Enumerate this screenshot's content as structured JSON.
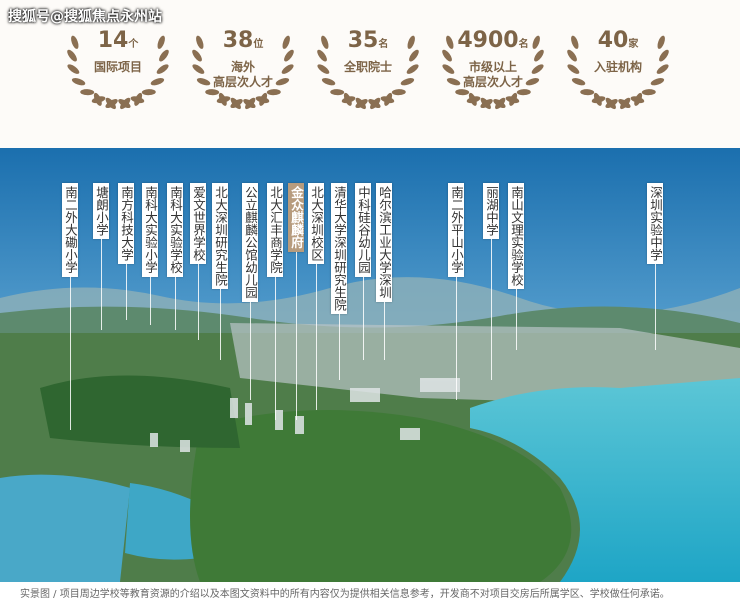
{
  "watermark": "搜狐号@搜狐焦点永州站",
  "stats": [
    {
      "number": "14",
      "unit": "个",
      "lines": [
        "国际项目"
      ]
    },
    {
      "number": "38",
      "unit": "位",
      "lines": [
        "海外",
        "高层次人才"
      ]
    },
    {
      "number": "35",
      "unit": "名",
      "lines": [
        "全职院士"
      ]
    },
    {
      "number": "4900",
      "unit": "名",
      "lines": [
        "市级以上",
        "高层次人才"
      ]
    },
    {
      "number": "40",
      "unit": "家",
      "lines": [
        "入驻机构"
      ]
    }
  ],
  "places": [
    "南二外大磡小学",
    "塘朗小学",
    "南方科技大学",
    "南科大实验小学",
    "南科大实验学校",
    "爱文世界学校",
    "北大深圳研究生院",
    "公立麒麟公馆幼儿园",
    "北大汇丰商学院",
    "金众麒麟府",
    "北大深圳校区",
    "清华大学深圳研究生院",
    "中科硅谷幼儿园",
    "哈尔滨工业大学深圳",
    "南二外平山小学",
    "丽湖中学",
    "南山文理实验学校",
    "深圳实验中学"
  ],
  "caption": "实景图  /  项目周边学校等教育资源的介绍以及本图文资料中的所有内容仅为提供相关信息参考，开发商不对项目交房后所属学区、学校做任何承诺。"
}
